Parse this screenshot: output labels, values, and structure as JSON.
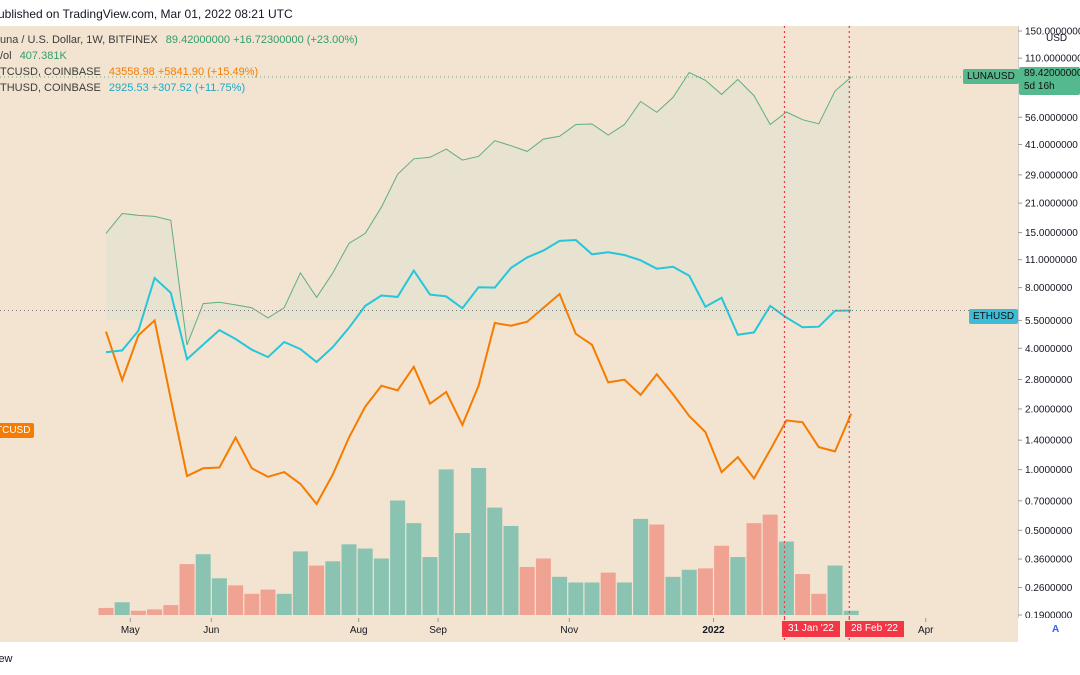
{
  "header": {
    "published_by": "ublished on TradingView.com, Mar 01, 2022 08:21 UTC"
  },
  "legend": {
    "luna": {
      "name": "una / U.S. Dollar, 1W, BITFINEX",
      "price": "89.42000000",
      "change": "+16.72300000 (+23.00%)"
    },
    "vol": {
      "name": "/ol",
      "value": "407.381K"
    },
    "btc": {
      "name": "TCUSD, COINBASE",
      "price": "43558.98",
      "change": "+5841.90 (+15.49%)"
    },
    "eth": {
      "name": "THUSD, COINBASE",
      "price": "2925.53",
      "change": "+307.52 (+11.75%)"
    }
  },
  "tags": {
    "luna": "LUNAUSD",
    "luna_price": "89.42000000",
    "luna_countdown": "5d 16h",
    "eth": "ETHUSD",
    "btc": "TCUSD",
    "date1": "31 Jan '22",
    "date2": "28 Feb '22",
    "axis_currency": "USD",
    "auto": "A"
  },
  "footer": {
    "brand": "iew"
  },
  "colors": {
    "background": "#f3e4d1",
    "luna_line": "#5fae7f",
    "luna_fill": "#e7e1d0",
    "btc_line": "#f57c00",
    "eth_line": "#26c6da",
    "vol_up": "#8bc3b3",
    "vol_down": "#f0a393",
    "marker": "#f23645"
  },
  "chart_data": {
    "type": "line",
    "scale": "log",
    "y_axis_ticks": [
      "150.0000000",
      "110.0000000",
      "89.42000000",
      "56.0000000",
      "41.0000000",
      "29.0000000",
      "21.0000000",
      "15.0000000",
      "11.0000000",
      "8.0000000",
      "5.5000000",
      "4.0000000",
      "2.8000000",
      "2.0000000",
      "1.4000000",
      "1.0000000",
      "0.7000000",
      "0.5000000",
      "0.3600000",
      "0.2600000",
      "0.1900000"
    ],
    "x_axis_labels": [
      "May",
      "Jun",
      "Aug",
      "Sep",
      "Nov",
      "2022",
      "Apr"
    ],
    "x_axis_ticks": [
      {
        "label": "May",
        "week": 1.5
      },
      {
        "label": "Jun",
        "week": 6.5
      },
      {
        "label": "Aug",
        "week": 15.6
      },
      {
        "label": "Sep",
        "week": 20.5
      },
      {
        "label": "Nov",
        "week": 28.6
      },
      {
        "label": "2022",
        "week": 37.5
      },
      {
        "label": "Apr",
        "week": 50.6
      }
    ],
    "x_start": "2021-04-12",
    "interval": "1W",
    "markers": [
      {
        "label": "31 Jan '22",
        "week": 41.9
      },
      {
        "label": "28 Feb '22",
        "week": 45.9
      }
    ],
    "series": [
      {
        "name": "LUNAUSD",
        "values": [
          14.8,
          18.6,
          18.2,
          18.0,
          17.2,
          4.1,
          6.6,
          6.7,
          6.5,
          6.3,
          5.6,
          6.3,
          9.4,
          7.1,
          9.4,
          13.2,
          14.8,
          20.0,
          29.2,
          34.9,
          35.5,
          39.0,
          34.4,
          35.9,
          43.0,
          40.6,
          38.0,
          43.8,
          45.2,
          51.8,
          52.1,
          45.9,
          51.7,
          67.5,
          59.6,
          70.7,
          94.2,
          86.1,
          73.2,
          87.0,
          72.2,
          51.8,
          59.8,
          54.7,
          52.2,
          76.1,
          89.42
        ]
      },
      {
        "name": "BTCUSD",
        "values": [
          59000,
          49300,
          58200,
          61500,
          46000,
          34600,
          35600,
          35700,
          39900,
          35600,
          34500,
          35100,
          33600,
          31200,
          34800,
          39900,
          44700,
          48300,
          47500,
          51800,
          45200,
          47200,
          41800,
          48300,
          60900,
          60300,
          61200,
          64400,
          67800,
          58500,
          56200,
          48900,
          49400,
          46700,
          50400,
          46800,
          43200,
          40700,
          35100,
          37100,
          34300,
          38100,
          42500,
          42200,
          38500,
          37900,
          43558.98
        ]
      },
      {
        "name": "ETHUSD",
        "values": [
          2200,
          2230,
          2550,
          3650,
          3300,
          2100,
          2320,
          2560,
          2410,
          2240,
          2130,
          2360,
          2250,
          2060,
          2280,
          2600,
          3020,
          3240,
          3210,
          3840,
          3260,
          3220,
          2970,
          3430,
          3420,
          3910,
          4200,
          4400,
          4700,
          4730,
          4290,
          4350,
          4270,
          4120,
          3890,
          3940,
          3710,
          3000,
          3190,
          2480,
          2520,
          3020,
          2790,
          2610,
          2620,
          2920,
          2925.53
        ]
      },
      {
        "name": "Vol",
        "values": [
          5,
          9,
          3,
          4,
          7,
          36,
          43,
          26,
          21,
          15,
          18,
          15,
          45,
          35,
          38,
          50,
          47,
          40,
          81,
          65,
          41,
          103,
          58,
          104,
          76,
          63,
          34,
          40,
          27,
          23,
          23,
          30,
          23,
          68,
          64,
          27,
          32,
          33,
          49,
          41,
          65,
          71,
          52,
          29,
          15,
          35,
          3
        ],
        "direction": [
          "down",
          "up",
          "down",
          "down",
          "down",
          "down",
          "up",
          "up",
          "down",
          "down",
          "down",
          "up",
          "up",
          "down",
          "up",
          "up",
          "up",
          "up",
          "up",
          "up",
          "up",
          "up",
          "up",
          "up",
          "up",
          "up",
          "down",
          "down",
          "up",
          "up",
          "up",
          "down",
          "up",
          "up",
          "down",
          "up",
          "up",
          "down",
          "down",
          "up",
          "down",
          "down",
          "up",
          "down",
          "down",
          "up",
          "up"
        ]
      }
    ]
  }
}
